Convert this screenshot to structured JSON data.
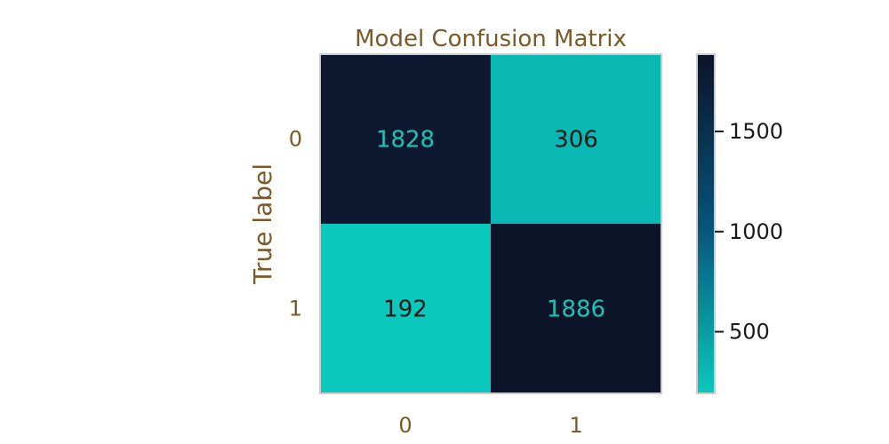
{
  "chart_data": {
    "type": "heatmap",
    "title": "Model Confusion Matrix",
    "xlabel": "",
    "ylabel": "True label",
    "x_categories": [
      "0",
      "1"
    ],
    "y_categories": [
      "0",
      "1"
    ],
    "matrix": [
      [
        1828,
        306
      ],
      [
        192,
        1886
      ]
    ],
    "colorbar": {
      "min": 192,
      "max": 1886,
      "ticks": [
        500,
        1000,
        1500
      ]
    },
    "grid": false,
    "colors": {
      "low": "#0ac8bc",
      "mid": "#08527a",
      "high": "#0b1429",
      "text_on_dark": "#1fc2b6",
      "text_on_light": "#1a1a1a",
      "label_color": "#7a5a26",
      "tick_label_color": "#7a5a26",
      "colorbar_tick_color": "#1a1a1a",
      "frame": "#cccccc"
    }
  }
}
